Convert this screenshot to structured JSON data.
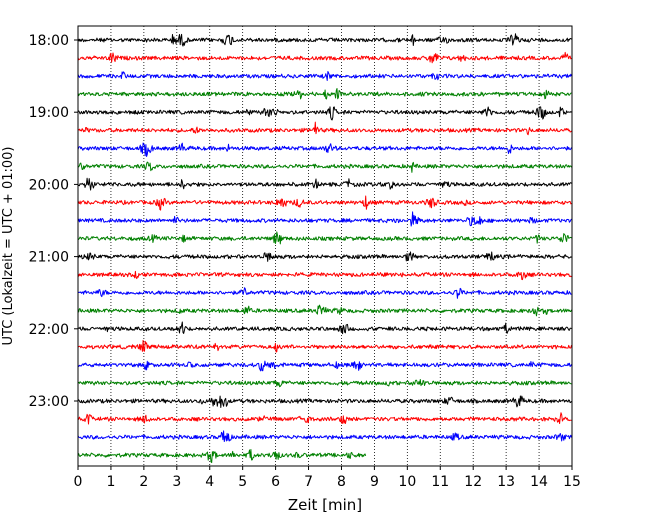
{
  "chart_data": {
    "type": "line",
    "title": "",
    "xlabel": "Zeit  [min]",
    "ylabel": "UTC (Lokalzeit = UTC + 01:00)",
    "xlim": [
      0,
      15
    ],
    "x_ticks": [
      "0",
      "1",
      "2",
      "3",
      "4",
      "5",
      "6",
      "7",
      "8",
      "9",
      "10",
      "11",
      "12",
      "13",
      "14",
      "15"
    ],
    "y_tick_labels": [
      "18:00",
      "19:00",
      "20:00",
      "21:00",
      "22:00",
      "23:00"
    ],
    "grid": "vertical-dotted",
    "colors": [
      "#000000",
      "#ff0000",
      "#0000ff",
      "#008000"
    ],
    "traces": [
      {
        "start": "18:00",
        "end_min": 15
      },
      {
        "start": "18:15",
        "end_min": 15
      },
      {
        "start": "18:30",
        "end_min": 15
      },
      {
        "start": "18:45",
        "end_min": 15
      },
      {
        "start": "19:00",
        "end_min": 15
      },
      {
        "start": "19:15",
        "end_min": 15
      },
      {
        "start": "19:30",
        "end_min": 15
      },
      {
        "start": "19:45",
        "end_min": 15
      },
      {
        "start": "20:00",
        "end_min": 15
      },
      {
        "start": "20:15",
        "end_min": 15
      },
      {
        "start": "20:30",
        "end_min": 15
      },
      {
        "start": "20:45",
        "end_min": 15
      },
      {
        "start": "21:00",
        "end_min": 15
      },
      {
        "start": "21:15",
        "end_min": 15
      },
      {
        "start": "21:30",
        "end_min": 15
      },
      {
        "start": "21:45",
        "end_min": 15
      },
      {
        "start": "22:00",
        "end_min": 15
      },
      {
        "start": "22:15",
        "end_min": 15
      },
      {
        "start": "22:30",
        "end_min": 15
      },
      {
        "start": "22:45",
        "end_min": 15
      },
      {
        "start": "23:00",
        "end_min": 15
      },
      {
        "start": "23:15",
        "end_min": 15
      },
      {
        "start": "23:30",
        "end_min": 15
      },
      {
        "start": "23:45",
        "end_min": 8.75
      }
    ]
  }
}
